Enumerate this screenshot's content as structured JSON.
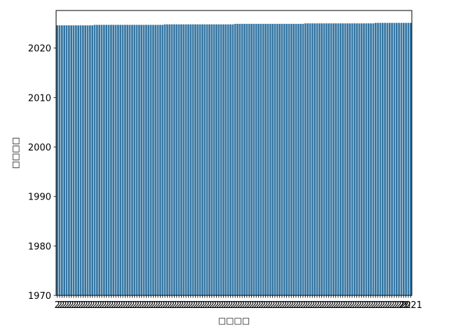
{
  "chart_data": {
    "type": "bar",
    "xlabel": "□□□□",
    "ylabel": "□□□□",
    "ylim": [
      1970,
      2027.6
    ],
    "yticks": [
      1970,
      1980,
      1990,
      2000,
      2010,
      2020
    ],
    "bar_count": 152,
    "x_tick_text": "2",
    "last_tick_text": "2021",
    "values_start": 2024.6,
    "values_end": 2025.1,
    "color": "#3274a1",
    "grid": false,
    "legend": "none"
  }
}
